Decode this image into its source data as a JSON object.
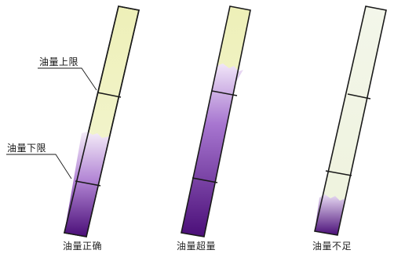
{
  "diagram": {
    "labels": {
      "upper_limit": "油量上限",
      "lower_limit": "油量下限"
    },
    "panels": [
      {
        "caption": "油量正确",
        "state": "correct"
      },
      {
        "caption": "油量超量",
        "state": "overfill"
      },
      {
        "caption": "油量不足",
        "state": "insufficient"
      }
    ],
    "colors": {
      "tube_fill": "#f0f3c8",
      "tube_fill_faded": "#f1f4e3",
      "oil_dark": "#4a0e78",
      "oil_mid": "#9a63c6",
      "oil_light": "#efe4f6",
      "outline": "#1a1a1a"
    }
  }
}
